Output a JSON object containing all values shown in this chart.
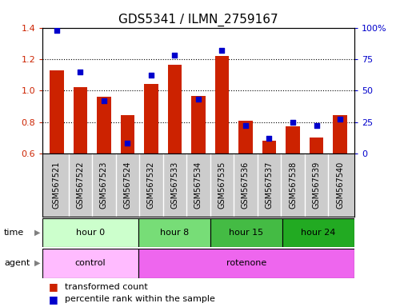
{
  "title": "GDS5341 / ILMN_2759167",
  "samples": [
    "GSM567521",
    "GSM567522",
    "GSM567523",
    "GSM567524",
    "GSM567532",
    "GSM567533",
    "GSM567534",
    "GSM567535",
    "GSM567536",
    "GSM567537",
    "GSM567538",
    "GSM567539",
    "GSM567540"
  ],
  "transformed_count": [
    1.13,
    1.02,
    0.96,
    0.845,
    1.04,
    1.165,
    0.965,
    1.22,
    0.81,
    0.68,
    0.775,
    0.7,
    0.845
  ],
  "percentile_rank": [
    98,
    65,
    42,
    8,
    62,
    78,
    43,
    82,
    22,
    12,
    25,
    22,
    27
  ],
  "ylim_left": [
    0.6,
    1.4
  ],
  "ylim_right": [
    0,
    100
  ],
  "bar_color": "#cc2200",
  "dot_color": "#0000cc",
  "background_color": "#ffffff",
  "xlabel_bg": "#cccccc",
  "time_groups": [
    {
      "label": "hour 0",
      "start": 0,
      "end": 4,
      "color": "#ccffcc"
    },
    {
      "label": "hour 8",
      "start": 4,
      "end": 7,
      "color": "#77dd77"
    },
    {
      "label": "hour 15",
      "start": 7,
      "end": 10,
      "color": "#44bb44"
    },
    {
      "label": "hour 24",
      "start": 10,
      "end": 13,
      "color": "#22aa22"
    }
  ],
  "agent_groups": [
    {
      "label": "control",
      "start": 0,
      "end": 4,
      "color": "#ffbbff"
    },
    {
      "label": "rotenone",
      "start": 4,
      "end": 13,
      "color": "#ee66ee"
    }
  ],
  "left_yticks": [
    0.6,
    0.8,
    1.0,
    1.2,
    1.4
  ],
  "left_ylabels": [
    "0.6",
    "0.8",
    "1.0",
    "1.2",
    "1.4"
  ],
  "right_yticks": [
    0,
    25,
    50,
    75,
    100
  ],
  "right_ylabels": [
    "0",
    "25",
    "50",
    "75",
    "100%"
  ],
  "x_tick_fontsize": 7,
  "title_fontsize": 11,
  "legend_fontsize": 8,
  "ytick_left_color": "#cc2200",
  "ytick_right_color": "#0000cc"
}
